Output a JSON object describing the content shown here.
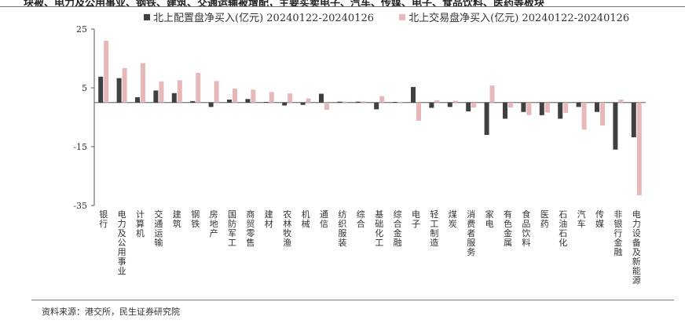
{
  "page_title_partial": "块被、电力及公用事业、钢铁、建筑、交通运输被增配，主要买卖电子、汽车、传媒、电子、食品饮料、医药等板块",
  "source": "资料来源：港交所，民生证券研究院",
  "colors": {
    "series1": "#404040",
    "series2": "#e8b8b8"
  },
  "chart_data": {
    "type": "bar",
    "ylim": [
      -35,
      25
    ],
    "yticks": [
      25,
      5,
      -15,
      -35
    ],
    "categories": [
      "银行",
      "电力及公用事业",
      "计算机",
      "交通运输",
      "建筑",
      "钢铁",
      "房地产",
      "国防军工",
      "商贸零售",
      "建材",
      "农林牧渔",
      "机械",
      "通信",
      "纺织服装",
      "综合",
      "基础化工",
      "综合金融",
      "电子",
      "轻工制造",
      "煤炭",
      "消费者服务",
      "家电",
      "有色金属",
      "食品饮料",
      "医药",
      "石油石化",
      "汽车",
      "传媒",
      "非银行金融",
      "电力设备及新能源"
    ],
    "series": [
      {
        "name": "北上配置盘净买入(亿元) 20240122-20240126",
        "values": [
          8.8,
          8.3,
          1.8,
          4.1,
          3.2,
          0.5,
          -1.5,
          1.0,
          1.2,
          0.2,
          -1.0,
          -0.8,
          3.0,
          0.3,
          0.3,
          -2.3,
          0.2,
          5.3,
          -1.8,
          -1.5,
          -3.0,
          -11.0,
          -5.5,
          -3.2,
          -4.3,
          -5.5,
          -1.5,
          -3.2,
          -16.0,
          -11.8
        ]
      },
      {
        "name": "北上交易盘净买入(亿元) 20240122-20240126",
        "values": [
          21.0,
          11.7,
          13.4,
          7.2,
          7.6,
          10.1,
          7.3,
          4.7,
          4.4,
          3.6,
          3.1,
          1.4,
          -2.5,
          0.3,
          0.4,
          2.2,
          0.2,
          -6.2,
          0.8,
          0.6,
          -1.7,
          5.8,
          -1.7,
          -4.3,
          -3.4,
          -3.5,
          -9.2,
          -7.8,
          1.0,
          -31.5
        ]
      }
    ]
  }
}
